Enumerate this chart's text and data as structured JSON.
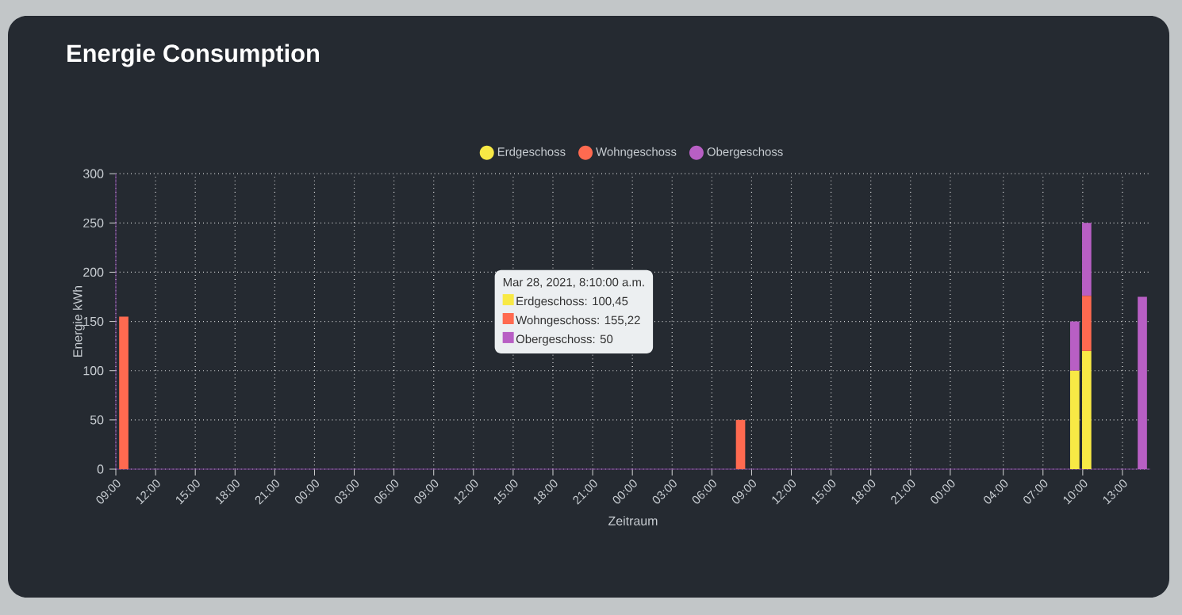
{
  "chart_data": {
    "type": "bar",
    "stacked": true,
    "title": "Energie Consumption",
    "xlabel": "Zeitraum",
    "ylabel": "Energie kWh",
    "x": [
      "2021-03-26T09:36",
      "2021-03-28T08:10",
      "2021-03-29T09:24",
      "2021-03-29T10:18",
      "2021-03-29T14:30"
    ],
    "series": [
      {
        "name": "Erdgeschoss",
        "color": "#f8e945",
        "values": [
          null,
          null,
          100,
          120,
          null
        ]
      },
      {
        "name": "Wohngeschoss",
        "color": "#ff6a50",
        "values": [
          155,
          50,
          null,
          56,
          null
        ]
      },
      {
        "name": "Obergeschoss",
        "color": "#b85fc4",
        "values": [
          null,
          null,
          50,
          74,
          175
        ]
      }
    ],
    "xlim": [
      "2021-03-26T09:00",
      "2021-03-29T15:06"
    ],
    "xticks": [
      {
        "value": "2021-03-26T09:00",
        "label": "09:00"
      },
      {
        "value": "2021-03-26T12:00",
        "label": "12:00"
      },
      {
        "value": "2021-03-26T15:00",
        "label": "15:00"
      },
      {
        "value": "2021-03-26T18:00",
        "label": "18:00"
      },
      {
        "value": "2021-03-26T21:00",
        "label": "21:00"
      },
      {
        "value": "2021-03-27T00:00",
        "label": "00:00"
      },
      {
        "value": "2021-03-27T03:00",
        "label": "03:00"
      },
      {
        "value": "2021-03-27T06:00",
        "label": "06:00"
      },
      {
        "value": "2021-03-27T09:00",
        "label": "09:00"
      },
      {
        "value": "2021-03-27T12:00",
        "label": "12:00"
      },
      {
        "value": "2021-03-27T15:00",
        "label": "15:00"
      },
      {
        "value": "2021-03-27T18:00",
        "label": "18:00"
      },
      {
        "value": "2021-03-27T21:00",
        "label": "21:00"
      },
      {
        "value": "2021-03-28T00:00",
        "label": "00:00"
      },
      {
        "value": "2021-03-28T03:00",
        "label": "03:00"
      },
      {
        "value": "2021-03-28T06:00",
        "label": "06:00"
      },
      {
        "value": "2021-03-28T09:00",
        "label": "09:00"
      },
      {
        "value": "2021-03-28T12:00",
        "label": "12:00"
      },
      {
        "value": "2021-03-28T15:00",
        "label": "15:00"
      },
      {
        "value": "2021-03-28T18:00",
        "label": "18:00"
      },
      {
        "value": "2021-03-28T21:00",
        "label": "21:00"
      },
      {
        "value": "2021-03-29T00:00",
        "label": "00:00"
      },
      {
        "value": "2021-03-29T04:00",
        "label": "04:00"
      },
      {
        "value": "2021-03-29T07:00",
        "label": "07:00"
      },
      {
        "value": "2021-03-29T10:00",
        "label": "10:00"
      },
      {
        "value": "2021-03-29T13:00",
        "label": "13:00"
      }
    ],
    "ylim": [
      0,
      300
    ],
    "yticks": [
      0,
      50,
      100,
      150,
      200,
      250,
      300
    ],
    "grid": true,
    "legend": "top",
    "annotations": [
      "Mar 28, 2021, 8:10:00 a.m.",
      "Erdgeschoss: 100,45",
      "Wohngeschoss: 155,22",
      "Obergeschoss: 50"
    ]
  }
}
